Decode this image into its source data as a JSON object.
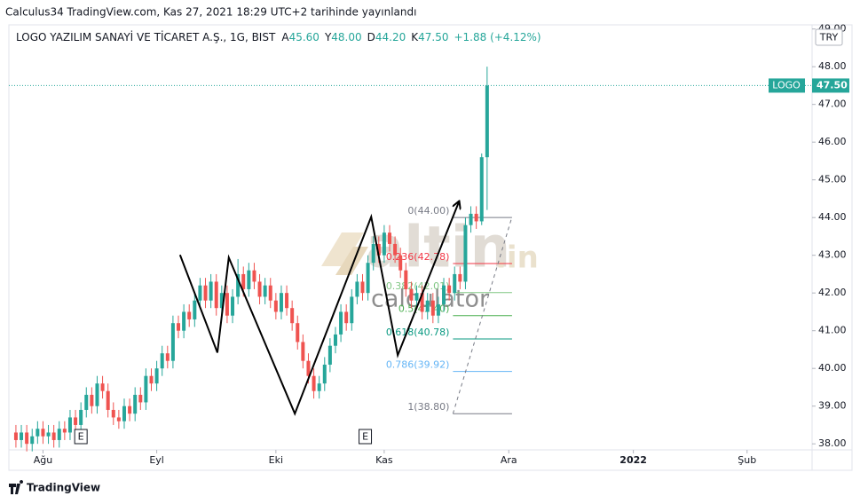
{
  "header": {
    "published": "Calculus34 TradingView.com, Kas 27, 2021 18:29 UTC+2 tarihinde yayınlandı"
  },
  "chart_data": {
    "type": "candlestick",
    "title": "LOGO YAZILIM SANAYİ VE TİCARET A.Ş., 1G, BIST",
    "ohlc_legend": [
      {
        "key": "A",
        "value": "45.60"
      },
      {
        "key": "Y",
        "value": "48.00"
      },
      {
        "key": "D",
        "value": "44.20"
      },
      {
        "key": "K",
        "value": "47.50"
      }
    ],
    "change": "+1.88 (+4.12%)",
    "currency": "TRY",
    "series": [
      {
        "name": "LOGO",
        "up_color": "#26a69a",
        "down_color": "#ef5350",
        "last_label": "47.50",
        "open": [
          38.3,
          38.1,
          38.3,
          38.0,
          38.2,
          38.4,
          38.2,
          38.3,
          38.1,
          38.4,
          38.3,
          38.7,
          38.5,
          38.9,
          39.3,
          39.0,
          39.6,
          39.4,
          38.9,
          38.7,
          38.6,
          39.0,
          38.8,
          39.3,
          39.1,
          39.8,
          39.6,
          40.0,
          40.4,
          40.2,
          41.2,
          41.0,
          41.5,
          41.3,
          41.8,
          42.2,
          41.8,
          42.3,
          41.6,
          42.0,
          41.4,
          41.9,
          42.5,
          42.1,
          42.6,
          42.3,
          41.9,
          42.2,
          41.8,
          41.5,
          42.0,
          41.6,
          41.2,
          40.7,
          40.2,
          39.8,
          39.4,
          39.6,
          40.1,
          40.6,
          40.9,
          41.5,
          41.2,
          41.9,
          42.3,
          42.0,
          42.8,
          43.3,
          43.0,
          43.6,
          43.3,
          43.0,
          42.6,
          42.1,
          41.8,
          42.0,
          41.5,
          41.8,
          41.4,
          41.7,
          42.2,
          42.0,
          42.5,
          42.3,
          43.8,
          44.1,
          43.9,
          45.6
        ],
        "high": [
          38.5,
          38.5,
          38.5,
          38.4,
          38.6,
          38.6,
          38.5,
          38.5,
          38.6,
          38.6,
          38.9,
          38.9,
          39.1,
          39.5,
          39.5,
          39.8,
          39.8,
          39.6,
          39.1,
          38.9,
          39.2,
          39.2,
          39.5,
          39.5,
          40.0,
          40.0,
          40.2,
          40.6,
          40.6,
          41.4,
          41.4,
          41.7,
          41.7,
          42.0,
          42.4,
          42.4,
          42.5,
          42.5,
          42.2,
          42.2,
          42.1,
          42.9,
          42.7,
          42.8,
          42.8,
          42.5,
          42.4,
          42.4,
          42.0,
          42.2,
          42.2,
          41.8,
          41.4,
          40.9,
          40.4,
          40.0,
          39.8,
          40.3,
          40.8,
          41.1,
          41.7,
          41.7,
          42.1,
          42.5,
          42.5,
          43.0,
          43.5,
          43.5,
          43.8,
          43.8,
          43.5,
          43.2,
          42.8,
          42.3,
          42.2,
          42.2,
          42.0,
          42.0,
          41.9,
          42.4,
          42.4,
          42.7,
          42.7,
          44.0,
          44.3,
          44.3,
          45.7,
          48.0
        ],
        "low": [
          37.9,
          37.9,
          37.8,
          37.8,
          38.0,
          38.0,
          38.0,
          37.9,
          37.9,
          38.1,
          38.1,
          38.3,
          38.3,
          38.7,
          38.8,
          38.8,
          39.2,
          38.7,
          38.5,
          38.4,
          38.4,
          38.6,
          38.6,
          38.9,
          38.9,
          39.4,
          39.4,
          39.8,
          40.0,
          40.0,
          40.8,
          40.8,
          41.1,
          41.1,
          41.6,
          41.6,
          41.6,
          41.4,
          41.4,
          41.2,
          41.2,
          41.7,
          41.9,
          41.9,
          42.1,
          41.7,
          41.7,
          41.6,
          41.3,
          41.3,
          41.4,
          41.0,
          40.5,
          40.0,
          39.6,
          39.2,
          39.2,
          39.4,
          39.9,
          40.4,
          40.7,
          41.0,
          41.0,
          41.7,
          41.8,
          41.8,
          42.6,
          42.8,
          42.8,
          43.1,
          42.8,
          42.4,
          41.9,
          41.6,
          41.6,
          41.3,
          41.3,
          41.2,
          41.2,
          41.5,
          41.8,
          41.8,
          42.1,
          42.1,
          43.6,
          43.7,
          43.8,
          44.2
        ],
        "close": [
          38.1,
          38.3,
          38.0,
          38.2,
          38.4,
          38.2,
          38.3,
          38.1,
          38.4,
          38.3,
          38.7,
          38.5,
          38.9,
          39.3,
          39.0,
          39.6,
          39.4,
          38.9,
          38.7,
          38.6,
          39.0,
          38.8,
          39.3,
          39.1,
          39.8,
          39.6,
          40.0,
          40.4,
          40.2,
          41.2,
          41.0,
          41.5,
          41.3,
          41.8,
          42.2,
          41.8,
          42.3,
          41.6,
          42.0,
          41.4,
          41.9,
          42.5,
          42.1,
          42.6,
          42.3,
          41.9,
          42.2,
          41.8,
          41.5,
          42.0,
          41.6,
          41.2,
          40.7,
          40.2,
          39.8,
          39.4,
          39.6,
          40.1,
          40.6,
          40.9,
          41.5,
          41.2,
          41.9,
          42.3,
          42.0,
          42.8,
          43.3,
          43.0,
          43.6,
          43.3,
          43.0,
          42.6,
          42.1,
          41.8,
          42.0,
          41.5,
          41.8,
          41.4,
          41.7,
          42.2,
          42.0,
          42.5,
          42.3,
          43.8,
          44.1,
          43.9,
          45.6,
          47.5
        ]
      }
    ],
    "xlim": [
      -1.3,
      147
    ],
    "xticks": [
      {
        "value": 5,
        "label": "Ağu"
      },
      {
        "value": 26,
        "label": "Eyl"
      },
      {
        "value": 48,
        "label": "Eki"
      },
      {
        "value": 68,
        "label": "Kas"
      },
      {
        "value": 91,
        "label": "Ara"
      },
      {
        "value": 114,
        "label": "2022"
      },
      {
        "value": 135,
        "label": "Şub"
      }
    ],
    "ylim": [
      37.84,
      49.11
    ],
    "yticks": [
      {
        "value": 38,
        "label": "38.00"
      },
      {
        "value": 39,
        "label": "39.00"
      },
      {
        "value": 40,
        "label": "40.00"
      },
      {
        "value": 41,
        "label": "41.00"
      },
      {
        "value": 42,
        "label": "42.00"
      },
      {
        "value": 43,
        "label": "43.00"
      },
      {
        "value": 44,
        "label": "44.00"
      },
      {
        "value": 45,
        "label": "45.00"
      },
      {
        "value": 46,
        "label": "46.00"
      },
      {
        "value": 47,
        "label": "47.00"
      },
      {
        "value": 48,
        "label": "48.00"
      },
      {
        "value": 49,
        "label": "49.00"
      }
    ],
    "grid": false,
    "fibonacci": {
      "x": [
        80.7,
        91.6
      ],
      "levels": [
        {
          "label": "0(44.00)",
          "value": 44,
          "color": "#787b86"
        },
        {
          "label": "0.236(42.78)",
          "value": 42.78,
          "color": "#f23645"
        },
        {
          "label": "0.382(42.01)",
          "value": 42.01,
          "color": "#81c784"
        },
        {
          "label": "0.5(41.40)",
          "value": 41.4,
          "color": "#4caf50"
        },
        {
          "label": "0.618(40.78)",
          "value": 40.78,
          "color": "#089981"
        },
        {
          "label": "0.786(39.92)",
          "value": 39.92,
          "color": "#64b5f6"
        },
        {
          "label": "1(38.80)",
          "value": 38.8,
          "color": "#787b86"
        }
      ]
    },
    "drawings": {
      "zigzag": {
        "x": [
          30.3,
          37.2,
          39.3,
          51.5,
          65.6,
          70.5,
          81.8
        ],
        "y": [
          43.01,
          40.42,
          42.94,
          38.8,
          44.02,
          40.35,
          44.42
        ]
      },
      "trend": {
        "x": [
          80.7,
          91.6
        ],
        "y": [
          38.8,
          44.02
        ]
      }
    },
    "events": [
      {
        "label": "E",
        "x": 12
      },
      {
        "label": "E",
        "x": 64.5
      }
    ],
    "watermark": [
      "altin",
      ".in",
      "calculator"
    ]
  },
  "footer": {
    "brand": "TradingView"
  }
}
